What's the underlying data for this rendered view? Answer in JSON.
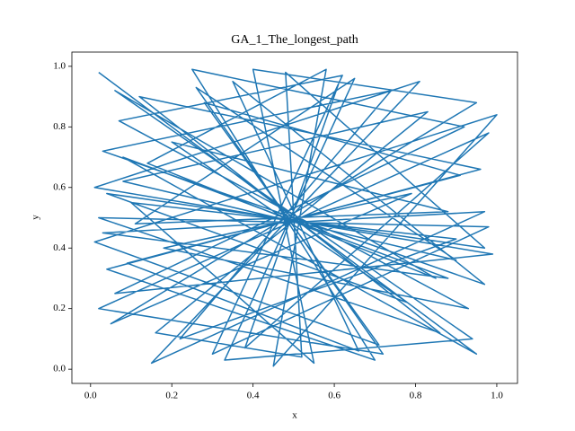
{
  "chart_data": {
    "type": "line",
    "title": "GA_1_The_longest_path",
    "xlabel": "x",
    "ylabel": "y",
    "color": "#1f77b4",
    "x": [
      0.02,
      0.95,
      0.08,
      0.88,
      0.03,
      0.97,
      0.15,
      0.81,
      0.01,
      0.99,
      0.06,
      0.92,
      0.25,
      0.7,
      0.04,
      0.96,
      0.12,
      0.86,
      0.02,
      0.98,
      0.3,
      0.62,
      0.07,
      0.93,
      0.18,
      0.79,
      0.05,
      0.95,
      0.4,
      0.55,
      0.1,
      0.9,
      0.22,
      0.74,
      0.03,
      0.97,
      0.35,
      0.66,
      0.09,
      0.91,
      0.28,
      0.71,
      0.01,
      1.0,
      0.45,
      0.58,
      0.14,
      0.85,
      0.06,
      0.94,
      0.33,
      0.65,
      0.11,
      0.88,
      0.2,
      0.78,
      0.04,
      0.97,
      0.48,
      0.52,
      0.16,
      0.83,
      0.08,
      0.9,
      0.26,
      0.72,
      0.02,
      0.98,
      0.38,
      0.61
    ],
    "values": [
      0.98,
      0.05,
      0.7,
      0.3,
      0.45,
      0.52,
      0.02,
      0.95,
      0.6,
      0.38,
      0.25,
      0.8,
      0.99,
      0.03,
      0.33,
      0.66,
      0.9,
      0.12,
      0.5,
      0.47,
      0.05,
      0.97,
      0.82,
      0.2,
      0.4,
      0.58,
      0.15,
      0.88,
      0.99,
      0.02,
      0.55,
      0.43,
      0.1,
      0.92,
      0.72,
      0.28,
      0.95,
      0.06,
      0.35,
      0.64,
      0.88,
      0.08,
      0.42,
      0.84,
      0.01,
      0.99,
      0.68,
      0.3,
      0.92,
      0.1,
      0.03,
      0.96,
      0.48,
      0.52,
      0.75,
      0.22,
      0.58,
      0.4,
      0.98,
      0.04,
      0.12,
      0.85,
      0.62,
      0.36,
      0.93,
      0.05,
      0.2,
      0.78,
      0.07,
      0.94
    ],
    "xlim": [
      -0.046,
      1.051
    ],
    "ylim": [
      -0.047,
      1.047
    ],
    "xticks": [
      {
        "value": 0,
        "label": "0.0"
      },
      {
        "value": 0.2,
        "label": "0.2"
      },
      {
        "value": 0.4,
        "label": "0.4"
      },
      {
        "value": 0.6,
        "label": "0.6"
      },
      {
        "value": 0.8,
        "label": "0.8"
      },
      {
        "value": 1,
        "label": "1.0"
      }
    ],
    "yticks": [
      {
        "value": 0,
        "label": "0.0"
      },
      {
        "value": 0.2,
        "label": "0.2"
      },
      {
        "value": 0.4,
        "label": "0.4"
      },
      {
        "value": 0.6,
        "label": "0.6"
      },
      {
        "value": 0.8,
        "label": "0.8"
      },
      {
        "value": 1,
        "label": "1.0"
      }
    ]
  }
}
